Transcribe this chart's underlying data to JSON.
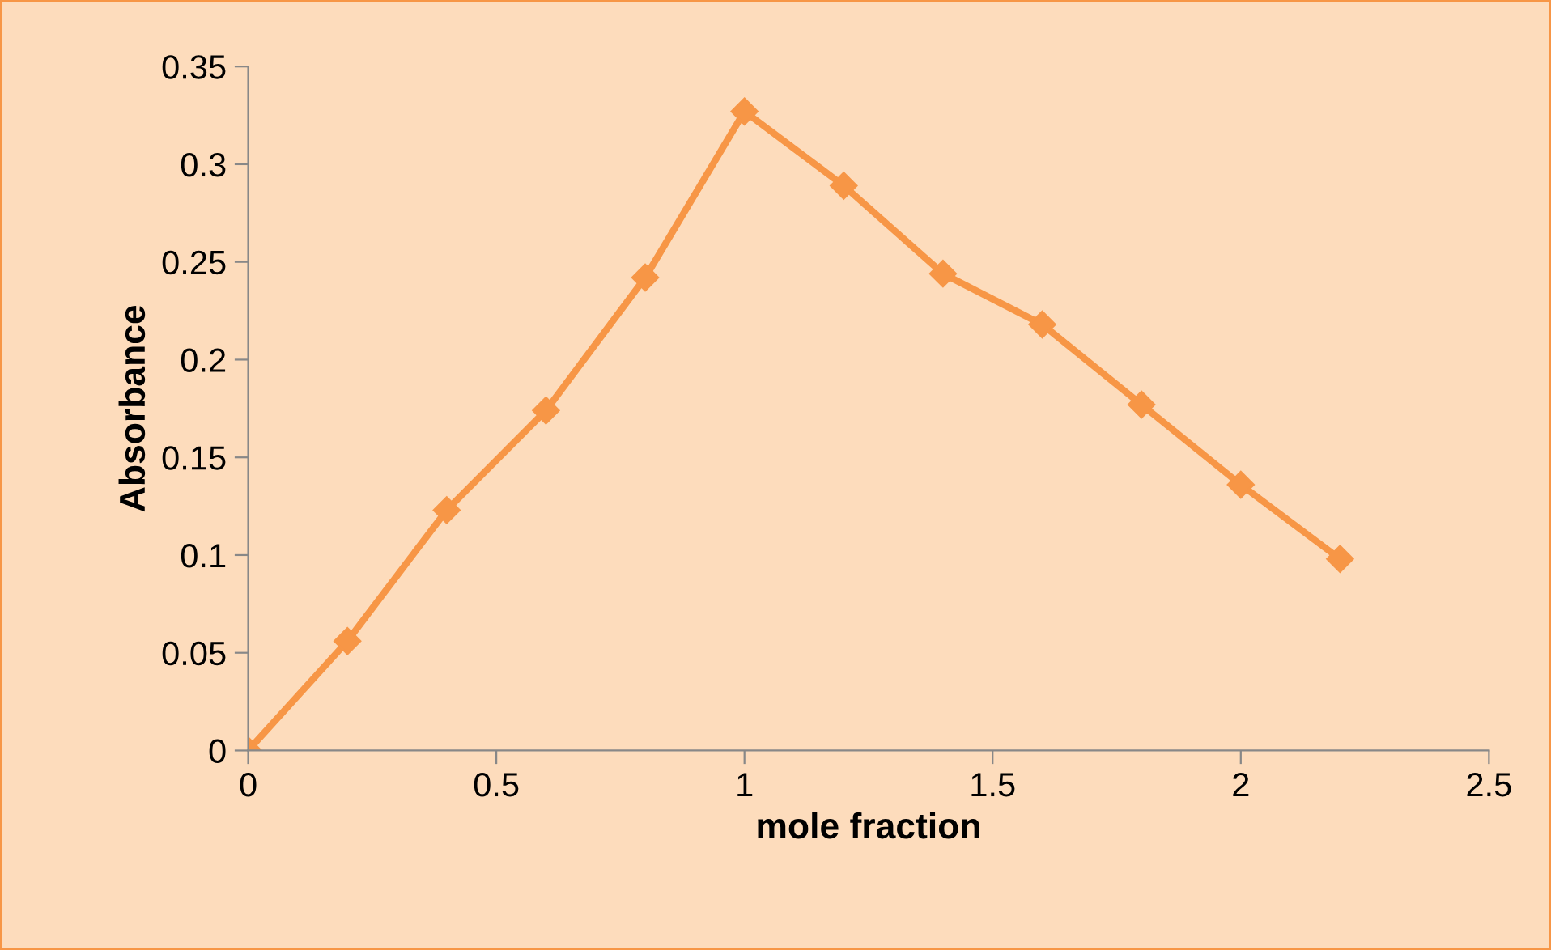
{
  "chart_data": {
    "type": "line",
    "xlabel": "mole fraction",
    "ylabel": "Absorbance",
    "x": [
      0,
      0.2,
      0.4,
      0.6,
      0.8,
      1.0,
      1.2,
      1.4,
      1.6,
      1.8,
      2.0,
      2.2
    ],
    "series": [
      {
        "color": "#f79646",
        "values": [
          0,
          0.056,
          0.123,
          0.174,
          0.242,
          0.327,
          0.289,
          0.244,
          0.218,
          0.177,
          0.136,
          0.098
        ]
      }
    ],
    "xlim": [
      0,
      2.5
    ],
    "xticks": [
      0,
      0.5,
      1,
      1.5,
      2,
      2.5
    ],
    "ylim": [
      0,
      0.35
    ],
    "yticks": [
      0,
      0.05,
      0.1,
      0.15,
      0.2,
      0.25,
      0.3,
      0.35
    ],
    "marker": "diamond",
    "line_style": "solid",
    "grid": false,
    "legend": false
  }
}
